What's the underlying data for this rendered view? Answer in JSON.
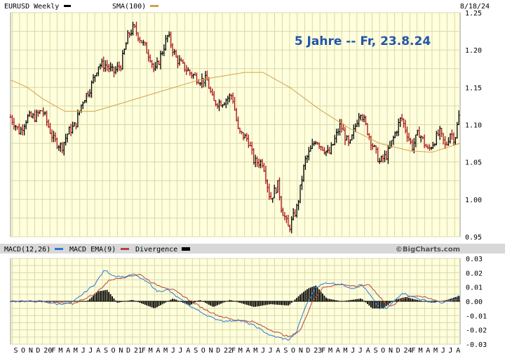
{
  "header": {
    "symbol_label": "EURUSD Weekly",
    "sma_label": "SMA(100)",
    "date": "8/18/24",
    "annotation": "5 Jahre -- Fr, 23.8.24"
  },
  "macd_header": {
    "macd_label": "MACD(12,26)",
    "ema_label": "MACD EMA(9)",
    "div_label": "Divergence",
    "brand": "©BigCharts.com"
  },
  "colors": {
    "panel_bg": "#ffffdd",
    "grid": "#d8d8a8",
    "up_bar": "#000000",
    "down_bar": "#aa1111",
    "sma": "#d4a24a",
    "macd": "#2b77d6",
    "ema": "#b5433d",
    "divergence": "#000000",
    "annotation": "#2255aa",
    "header_bg": "#d8d8d8"
  },
  "chart_data": [
    {
      "type": "ohlc",
      "title": "EURUSD Weekly",
      "ylim": [
        0.95,
        1.25
      ],
      "yticks": [
        "1.25",
        "1.20",
        "1.15",
        "1.10",
        "1.05",
        "1.00",
        "0.95"
      ],
      "x_range": [
        "2019-08-25",
        "2024-08-23"
      ],
      "series": [
        {
          "name": "EURUSD Weekly",
          "kind": "weekly price path (approximate close)",
          "points": [
            [
              "2019-08-25",
              1.11
            ],
            [
              "2019-10-01",
              1.09
            ],
            [
              "2019-11-01",
              1.11
            ],
            [
              "2019-12-01",
              1.11
            ],
            [
              "2020-01-01",
              1.12
            ],
            [
              "2020-02-15",
              1.08
            ],
            [
              "2020-03-20",
              1.07
            ],
            [
              "2020-04-15",
              1.09
            ],
            [
              "2020-05-15",
              1.1
            ],
            [
              "2020-06-10",
              1.13
            ],
            [
              "2020-07-15",
              1.15
            ],
            [
              "2020-08-15",
              1.18
            ],
            [
              "2020-09-15",
              1.18
            ],
            [
              "2020-10-15",
              1.17
            ],
            [
              "2020-11-15",
              1.18
            ],
            [
              "2020-12-15",
              1.22
            ],
            [
              "2021-01-06",
              1.23
            ],
            [
              "2021-02-10",
              1.21
            ],
            [
              "2021-03-15",
              1.19
            ],
            [
              "2021-04-01",
              1.17
            ],
            [
              "2021-05-25",
              1.22
            ],
            [
              "2021-06-25",
              1.19
            ],
            [
              "2021-07-20",
              1.18
            ],
            [
              "2021-08-20",
              1.17
            ],
            [
              "2021-09-30",
              1.16
            ],
            [
              "2021-10-30",
              1.16
            ],
            [
              "2021-11-25",
              1.13
            ],
            [
              "2021-12-30",
              1.13
            ],
            [
              "2022-02-10",
              1.14
            ],
            [
              "2022-03-07",
              1.09
            ],
            [
              "2022-04-15",
              1.08
            ],
            [
              "2022-05-10",
              1.05
            ],
            [
              "2022-06-15",
              1.05
            ],
            [
              "2022-07-14",
              1.0
            ],
            [
              "2022-08-15",
              1.02
            ],
            [
              "2022-08-28",
              0.99
            ],
            [
              "2022-09-27",
              0.96
            ],
            [
              "2022-11-01",
              0.99
            ],
            [
              "2022-12-01",
              1.05
            ],
            [
              "2023-01-15",
              1.08
            ],
            [
              "2023-03-10",
              1.06
            ],
            [
              "2023-04-25",
              1.1
            ],
            [
              "2023-05-31",
              1.07
            ],
            [
              "2023-07-14",
              1.12
            ],
            [
              "2023-08-25",
              1.08
            ],
            [
              "2023-10-01",
              1.05
            ],
            [
              "2023-11-01",
              1.06
            ],
            [
              "2023-12-28",
              1.11
            ],
            [
              "2024-02-10",
              1.07
            ],
            [
              "2024-03-08",
              1.09
            ],
            [
              "2024-04-15",
              1.065
            ],
            [
              "2024-06-01",
              1.09
            ],
            [
              "2024-06-25",
              1.07
            ],
            [
              "2024-07-15",
              1.09
            ],
            [
              "2024-08-01",
              1.08
            ],
            [
              "2024-08-23",
              1.12
            ]
          ]
        },
        {
          "name": "SMA(100)",
          "points": [
            [
              "2019-08-25",
              1.16
            ],
            [
              "2019-11-01",
              1.15
            ],
            [
              "2020-01-01",
              1.135
            ],
            [
              "2020-04-01",
              1.118
            ],
            [
              "2020-08-01",
              1.118
            ],
            [
              "2020-12-01",
              1.13
            ],
            [
              "2021-05-01",
              1.145
            ],
            [
              "2021-10-01",
              1.16
            ],
            [
              "2022-04-01",
              1.17
            ],
            [
              "2022-06-15",
              1.17
            ],
            [
              "2022-10-01",
              1.15
            ],
            [
              "2023-02-01",
              1.12
            ],
            [
              "2023-06-01",
              1.095
            ],
            [
              "2023-10-01",
              1.075
            ],
            [
              "2024-02-01",
              1.065
            ],
            [
              "2024-05-01",
              1.063
            ],
            [
              "2024-08-23",
              1.075
            ]
          ]
        }
      ]
    },
    {
      "type": "line",
      "title": "MACD(12,26)",
      "ylim": [
        -0.03,
        0.03
      ],
      "yticks": [
        "0.03",
        "0.02",
        "0.01",
        "0.00",
        "-0.01",
        "-0.02",
        "-0.03"
      ],
      "xlabels": [
        "S",
        "O",
        "N",
        "D",
        "20",
        "F",
        "M",
        "A",
        "M",
        "J",
        "J",
        "A",
        "S",
        "O",
        "N",
        "D",
        "21",
        "F",
        "M",
        "A",
        "M",
        "J",
        "J",
        "A",
        "S",
        "O",
        "N",
        "D",
        "22",
        "F",
        "M",
        "A",
        "M",
        "J",
        "J",
        "A",
        "S",
        "O",
        "N",
        "D",
        "23",
        "F",
        "M",
        "A",
        "M",
        "J",
        "J",
        "A",
        "S",
        "O",
        "N",
        "D",
        "24",
        "F",
        "M",
        "A",
        "M",
        "J",
        "J",
        "A"
      ],
      "series": [
        {
          "name": "MACD(12,26)",
          "points": [
            [
              "2019-08-25",
              0.0
            ],
            [
              "2019-11-01",
              0.0
            ],
            [
              "2020-01-01",
              0.0
            ],
            [
              "2020-03-01",
              -0.002
            ],
            [
              "2020-05-01",
              -0.001
            ],
            [
              "2020-08-01",
              0.012
            ],
            [
              "2020-09-10",
              0.022
            ],
            [
              "2020-10-15",
              0.018
            ],
            [
              "2020-12-01",
              0.017
            ],
            [
              "2021-01-06",
              0.019
            ],
            [
              "2021-03-15",
              0.012
            ],
            [
              "2021-04-10",
              0.007
            ],
            [
              "2021-05-25",
              0.008
            ],
            [
              "2021-07-01",
              0.003
            ],
            [
              "2021-08-20",
              -0.003
            ],
            [
              "2021-09-30",
              -0.007
            ],
            [
              "2021-11-25",
              -0.012
            ],
            [
              "2022-01-15",
              -0.014
            ],
            [
              "2022-03-10",
              -0.013
            ],
            [
              "2022-05-10",
              -0.017
            ],
            [
              "2022-07-15",
              -0.024
            ],
            [
              "2022-09-27",
              -0.027
            ],
            [
              "2022-10-28",
              -0.022
            ],
            [
              "2022-12-01",
              -0.005
            ],
            [
              "2023-01-15",
              0.01
            ],
            [
              "2023-03-01",
              0.013
            ],
            [
              "2023-04-25",
              0.012
            ],
            [
              "2023-06-15",
              0.009
            ],
            [
              "2023-07-20",
              0.012
            ],
            [
              "2023-08-25",
              0.004
            ],
            [
              "2023-10-01",
              -0.005
            ],
            [
              "2023-11-01",
              -0.005
            ],
            [
              "2024-01-01",
              0.006
            ],
            [
              "2024-02-15",
              0.003
            ],
            [
              "2024-04-15",
              0.0
            ],
            [
              "2024-06-15",
              -0.001
            ],
            [
              "2024-08-01",
              0.001
            ],
            [
              "2024-08-23",
              0.005
            ]
          ]
        },
        {
          "name": "MACD EMA(9)",
          "points": [
            [
              "2019-08-25",
              0.0
            ],
            [
              "2020-01-01",
              0.0
            ],
            [
              "2020-05-01",
              -0.002
            ],
            [
              "2020-08-01",
              0.005
            ],
            [
              "2020-10-01",
              0.015
            ],
            [
              "2020-12-01",
              0.017
            ],
            [
              "2021-01-30",
              0.019
            ],
            [
              "2021-04-01",
              0.012
            ],
            [
              "2021-06-15",
              0.008
            ],
            [
              "2021-08-01",
              0.003
            ],
            [
              "2021-10-15",
              -0.005
            ],
            [
              "2021-12-15",
              -0.01
            ],
            [
              "2022-02-15",
              -0.013
            ],
            [
              "2022-05-01",
              -0.014
            ],
            [
              "2022-07-15",
              -0.02
            ],
            [
              "2022-10-01",
              -0.025
            ],
            [
              "2022-11-15",
              -0.02
            ],
            [
              "2023-01-01",
              0.0
            ],
            [
              "2023-02-15",
              0.01
            ],
            [
              "2023-05-01",
              0.012
            ],
            [
              "2023-07-01",
              0.01
            ],
            [
              "2023-08-20",
              0.012
            ],
            [
              "2023-10-01",
              0.003
            ],
            [
              "2023-11-15",
              -0.004
            ],
            [
              "2024-01-15",
              0.003
            ],
            [
              "2024-03-01",
              0.004
            ],
            [
              "2024-06-01",
              0.0
            ],
            [
              "2024-08-23",
              0.001
            ]
          ]
        },
        {
          "name": "Divergence",
          "points": [
            [
              "2019-08-25",
              0.0
            ],
            [
              "2020-03-01",
              0.0
            ],
            [
              "2020-07-01",
              0.0
            ],
            [
              "2020-08-15",
              0.007
            ],
            [
              "2020-09-20",
              0.008
            ],
            [
              "2020-11-01",
              -0.001
            ],
            [
              "2021-01-01",
              0.001
            ],
            [
              "2021-04-01",
              -0.005
            ],
            [
              "2021-06-15",
              0.002
            ],
            [
              "2021-08-20",
              -0.003
            ],
            [
              "2021-10-01",
              0.001
            ],
            [
              "2021-11-25",
              -0.004
            ],
            [
              "2022-02-01",
              0.001
            ],
            [
              "2022-05-10",
              -0.004
            ],
            [
              "2022-07-15",
              -0.002
            ],
            [
              "2022-09-27",
              -0.003
            ],
            [
              "2022-11-15",
              0.005
            ],
            [
              "2022-12-15",
              0.009
            ],
            [
              "2023-01-15",
              0.011
            ],
            [
              "2023-03-01",
              0.002
            ],
            [
              "2023-05-01",
              0.0
            ],
            [
              "2023-07-20",
              0.002
            ],
            [
              "2023-09-01",
              -0.005
            ],
            [
              "2023-10-15",
              -0.005
            ],
            [
              "2023-12-01",
              0.001
            ],
            [
              "2024-01-15",
              0.003
            ],
            [
              "2024-03-01",
              0.001
            ],
            [
              "2024-05-01",
              -0.001
            ],
            [
              "2024-07-01",
              0.001
            ],
            [
              "2024-08-23",
              0.004
            ]
          ]
        }
      ]
    }
  ]
}
